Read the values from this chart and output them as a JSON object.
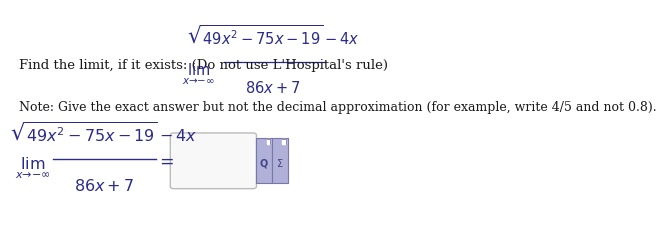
{
  "bg_color": "#ffffff",
  "text_color": "#1a1a1a",
  "math_color": "#2b2b8b",
  "font_size_body": 9.5,
  "font_size_note": 9.0,
  "font_size_math_sm": 10.5,
  "font_size_math_lg": 11.5,
  "line1_text": "Find the limit, if it exists: (Do not use L'Hospital's rule)",
  "note_text": "Note: Give the exact answer but not the decimal approximation (for example, write 4/5 and not 0.8).",
  "numerator": "$\\sqrt{49x^2 - 75x - 19} - 4x$",
  "denominator": "$86x + 7$",
  "lim_text": "$\\lim_{x \\to -\\infty}$",
  "icon_color": "#b0b0d8",
  "icon_edge": "#7777aa",
  "box_color": "#f8f8f8",
  "box_edge": "#bbbbbb"
}
